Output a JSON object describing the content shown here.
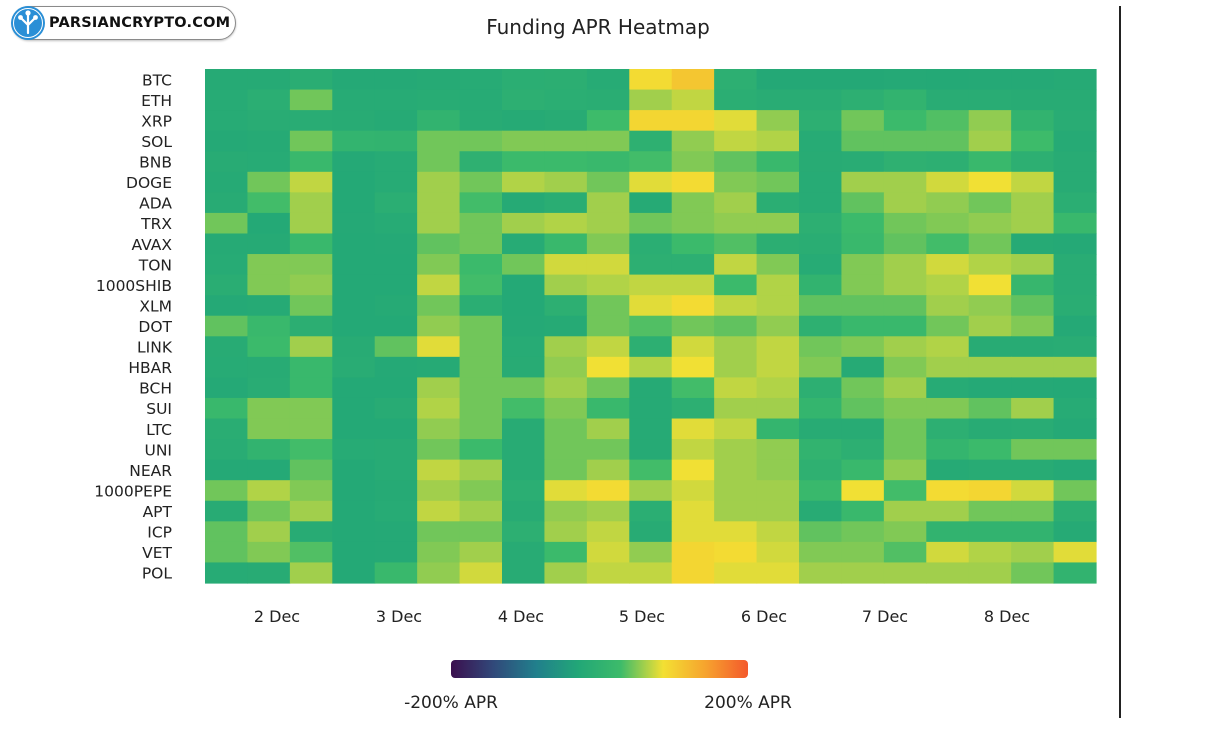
{
  "logo": {
    "text": "PARSIANCRYPTO.COM",
    "icon": "parsiancrypto-tree-icon"
  },
  "colors": {
    "accent": "#2a8fd6",
    "divider": "#222222"
  },
  "chart_data": {
    "type": "heatmap",
    "title": "Funding APR Heatmap",
    "xlabel": "",
    "ylabel": "",
    "rows": [
      "BTC",
      "ETH",
      "XRP",
      "SOL",
      "BNB",
      "DOGE",
      "ADA",
      "TRX",
      "AVAX",
      "TON",
      "1000SHIB",
      "XLM",
      "DOT",
      "LINK",
      "HBAR",
      "BCH",
      "SUI",
      "LTC",
      "UNI",
      "NEAR",
      "1000PEPE",
      "APT",
      "ICP",
      "VET",
      "POL"
    ],
    "x_ticks": [
      "2 Dec",
      "3 Dec",
      "4 Dec",
      "5 Dec",
      "6 Dec",
      "7 Dec",
      "8 Dec"
    ],
    "colorbar": {
      "min": -200,
      "max": 200,
      "min_label": "-200% APR",
      "max_label": "200% APR",
      "colormap": [
        "#3b0f4e",
        "#31497a",
        "#217f8c",
        "#22a777",
        "#3dbb6a",
        "#f3e033",
        "#f6a32e",
        "#f4592c"
      ]
    },
    "values": [
      [
        -20,
        -20,
        -12,
        -22,
        -22,
        -20,
        -18,
        -10,
        -8,
        -18,
        90,
        110,
        -5,
        -25,
        -25,
        -25,
        -22,
        -24,
        -22,
        -22,
        -20
      ],
      [
        -18,
        -10,
        45,
        -18,
        -18,
        -15,
        -18,
        -5,
        -10,
        -12,
        60,
        70,
        -10,
        -14,
        -14,
        -5,
        5,
        -14,
        -14,
        -16,
        -16
      ],
      [
        -18,
        -14,
        -14,
        -16,
        -20,
        5,
        -16,
        -20,
        -16,
        28,
        95,
        95,
        80,
        55,
        -6,
        45,
        25,
        35,
        55,
        5,
        -14
      ],
      [
        -22,
        -20,
        45,
        8,
        5,
        45,
        45,
        50,
        50,
        50,
        -4,
        55,
        70,
        65,
        -18,
        40,
        40,
        40,
        60,
        28,
        -20
      ],
      [
        -16,
        -18,
        20,
        -22,
        -18,
        45,
        -2,
        25,
        25,
        20,
        30,
        50,
        40,
        20,
        -16,
        -14,
        -2,
        -6,
        20,
        -6,
        -16
      ],
      [
        -20,
        45,
        70,
        -24,
        -18,
        60,
        45,
        65,
        60,
        45,
        80,
        90,
        50,
        45,
        -18,
        60,
        60,
        75,
        85,
        70,
        -16
      ],
      [
        -16,
        30,
        60,
        -24,
        -10,
        60,
        30,
        -20,
        -12,
        60,
        -20,
        50,
        60,
        -10,
        -18,
        40,
        60,
        55,
        45,
        60,
        -10
      ],
      [
        45,
        -24,
        60,
        -22,
        -18,
        60,
        45,
        60,
        65,
        60,
        45,
        50,
        55,
        55,
        -6,
        25,
        45,
        50,
        55,
        60,
        20
      ],
      [
        -20,
        -20,
        20,
        -24,
        -22,
        40,
        45,
        -18,
        20,
        50,
        -10,
        25,
        35,
        -8,
        -12,
        20,
        40,
        30,
        45,
        -20,
        -22
      ],
      [
        -18,
        50,
        50,
        -24,
        -24,
        50,
        25,
        45,
        75,
        75,
        -5,
        -6,
        70,
        50,
        -18,
        50,
        60,
        75,
        65,
        60,
        -14
      ],
      [
        -12,
        50,
        55,
        -24,
        -24,
        70,
        30,
        -24,
        60,
        65,
        70,
        70,
        25,
        65,
        5,
        50,
        60,
        65,
        85,
        15,
        -14
      ],
      [
        -22,
        -20,
        45,
        -24,
        -20,
        45,
        -10,
        -24,
        -5,
        45,
        80,
        90,
        70,
        65,
        40,
        40,
        40,
        60,
        55,
        40,
        -12
      ],
      [
        40,
        20,
        -8,
        -24,
        -24,
        55,
        45,
        -22,
        -20,
        45,
        35,
        45,
        40,
        55,
        -4,
        20,
        20,
        45,
        60,
        50,
        -22
      ],
      [
        -16,
        25,
        60,
        -16,
        40,
        80,
        45,
        -18,
        60,
        70,
        -6,
        75,
        60,
        70,
        45,
        50,
        60,
        65,
        -16,
        -16,
        -14
      ],
      [
        -18,
        -16,
        20,
        -14,
        -22,
        -20,
        45,
        -16,
        55,
        85,
        65,
        85,
        60,
        70,
        50,
        -20,
        50,
        60,
        60,
        60,
        60
      ],
      [
        -22,
        -14,
        20,
        -24,
        -24,
        60,
        45,
        45,
        60,
        45,
        -20,
        30,
        70,
        65,
        -6,
        45,
        60,
        -18,
        -22,
        -22,
        -24
      ],
      [
        20,
        50,
        50,
        -24,
        -16,
        65,
        45,
        30,
        50,
        20,
        -20,
        -6,
        60,
        60,
        10,
        40,
        50,
        50,
        40,
        60,
        -18
      ],
      [
        -12,
        50,
        50,
        -24,
        -24,
        55,
        45,
        -16,
        45,
        60,
        -20,
        80,
        70,
        10,
        -16,
        -16,
        45,
        -6,
        -16,
        -14,
        -22
      ],
      [
        -14,
        5,
        30,
        -18,
        -16,
        45,
        25,
        -16,
        45,
        45,
        -20,
        70,
        60,
        55,
        5,
        -6,
        45,
        10,
        25,
        45,
        45
      ],
      [
        -22,
        -22,
        40,
        -24,
        -18,
        70,
        60,
        -16,
        45,
        60,
        30,
        85,
        60,
        55,
        -2,
        20,
        55,
        -20,
        -16,
        -16,
        -22
      ],
      [
        45,
        65,
        50,
        -24,
        -20,
        60,
        50,
        -10,
        80,
        90,
        60,
        75,
        60,
        60,
        20,
        85,
        30,
        90,
        95,
        75,
        45
      ],
      [
        -16,
        45,
        60,
        -24,
        -18,
        70,
        60,
        -16,
        55,
        60,
        -10,
        80,
        60,
        60,
        -16,
        20,
        60,
        60,
        45,
        45,
        -8
      ],
      [
        40,
        60,
        -16,
        -24,
        -22,
        45,
        45,
        -6,
        60,
        70,
        -16,
        80,
        80,
        70,
        40,
        45,
        50,
        5,
        5,
        5,
        -20
      ],
      [
        40,
        50,
        35,
        -24,
        -22,
        50,
        60,
        -16,
        25,
        75,
        55,
        95,
        90,
        75,
        50,
        50,
        35,
        75,
        65,
        60,
        80
      ],
      [
        -18,
        -16,
        60,
        -24,
        20,
        55,
        75,
        -16,
        60,
        70,
        70,
        95,
        80,
        80,
        60,
        60,
        60,
        60,
        60,
        45,
        5
      ]
    ]
  }
}
